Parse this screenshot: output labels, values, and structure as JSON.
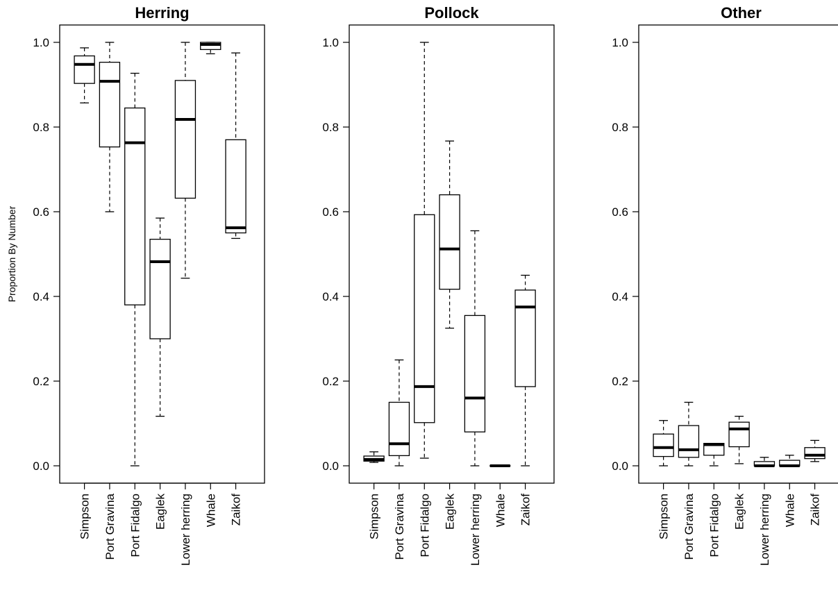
{
  "chart_data": [
    {
      "type": "boxplot",
      "title": "Herring",
      "ylabel": "Proportion By Number",
      "ylim": [
        -0.04,
        1.04
      ],
      "yticks": [
        "0.0",
        "0.2",
        "0.4",
        "0.6",
        "0.8",
        "1.0"
      ],
      "categories": [
        "Simpson",
        "Port Gravina",
        "Port Fidalgo",
        "Eaglek",
        "Lower herring",
        "Whale",
        "Zaikof"
      ],
      "boxes": [
        {
          "min": 0.857,
          "q1": 0.903,
          "median": 0.948,
          "q3": 0.968,
          "max": 0.987
        },
        {
          "min": 0.6,
          "q1": 0.753,
          "median": 0.908,
          "q3": 0.953,
          "max": 1.0
        },
        {
          "min": 0.0,
          "q1": 0.38,
          "median": 0.763,
          "q3": 0.845,
          "max": 0.927
        },
        {
          "min": 0.117,
          "q1": 0.3,
          "median": 0.482,
          "q3": 0.535,
          "max": 0.585
        },
        {
          "min": 0.443,
          "q1": 0.632,
          "median": 0.818,
          "q3": 0.91,
          "max": 1.0
        },
        {
          "min": 0.973,
          "q1": 0.983,
          "median": 0.995,
          "q3": 1.0,
          "max": 1.0
        },
        {
          "min": 0.537,
          "q1": 0.55,
          "median": 0.562,
          "q3": 0.77,
          "max": 0.975
        }
      ]
    },
    {
      "type": "boxplot",
      "title": "Pollock",
      "ylabel": "",
      "ylim": [
        -0.04,
        1.04
      ],
      "yticks": [
        "0.0",
        "0.2",
        "0.4",
        "0.6",
        "0.8",
        "1.0"
      ],
      "categories": [
        "Simpson",
        "Port Gravina",
        "Port Fidalgo",
        "Eaglek",
        "Lower herring",
        "Whale",
        "Zaikof"
      ],
      "boxes": [
        {
          "min": 0.008,
          "q1": 0.011,
          "median": 0.015,
          "q3": 0.023,
          "max": 0.033
        },
        {
          "min": 0.0,
          "q1": 0.024,
          "median": 0.052,
          "q3": 0.15,
          "max": 0.25
        },
        {
          "min": 0.018,
          "q1": 0.102,
          "median": 0.187,
          "q3": 0.593,
          "max": 1.0
        },
        {
          "min": 0.325,
          "q1": 0.417,
          "median": 0.512,
          "q3": 0.64,
          "max": 0.767
        },
        {
          "min": 0.0,
          "q1": 0.08,
          "median": 0.16,
          "q3": 0.355,
          "max": 0.555
        },
        {
          "min": 0.0,
          "q1": 0.0,
          "median": 0.0,
          "q3": 0.0,
          "max": 0.0
        },
        {
          "min": 0.0,
          "q1": 0.187,
          "median": 0.375,
          "q3": 0.415,
          "max": 0.45
        }
      ]
    },
    {
      "type": "boxplot",
      "title": "Other",
      "ylabel": "",
      "ylim": [
        -0.04,
        1.04
      ],
      "yticks": [
        "0.0",
        "0.2",
        "0.4",
        "0.6",
        "0.8",
        "1.0"
      ],
      "categories": [
        "Simpson",
        "Port Gravina",
        "Port Fidalgo",
        "Eaglek",
        "Lower herring",
        "Whale",
        "Zaikof"
      ],
      "boxes": [
        {
          "min": 0.0,
          "q1": 0.022,
          "median": 0.043,
          "q3": 0.075,
          "max": 0.107
        },
        {
          "min": 0.0,
          "q1": 0.02,
          "median": 0.038,
          "q3": 0.095,
          "max": 0.15
        },
        {
          "min": 0.0,
          "q1": 0.025,
          "median": 0.05,
          "q3": 0.053,
          "max": 0.053
        },
        {
          "min": 0.005,
          "q1": 0.045,
          "median": 0.087,
          "q3": 0.103,
          "max": 0.117
        },
        {
          "min": 0.0,
          "q1": 0.0,
          "median": 0.0,
          "q3": 0.01,
          "max": 0.02
        },
        {
          "min": 0.0,
          "q1": 0.0,
          "median": 0.0,
          "q3": 0.013,
          "max": 0.025
        },
        {
          "min": 0.01,
          "q1": 0.017,
          "median": 0.025,
          "q3": 0.043,
          "max": 0.06
        }
      ]
    }
  ]
}
